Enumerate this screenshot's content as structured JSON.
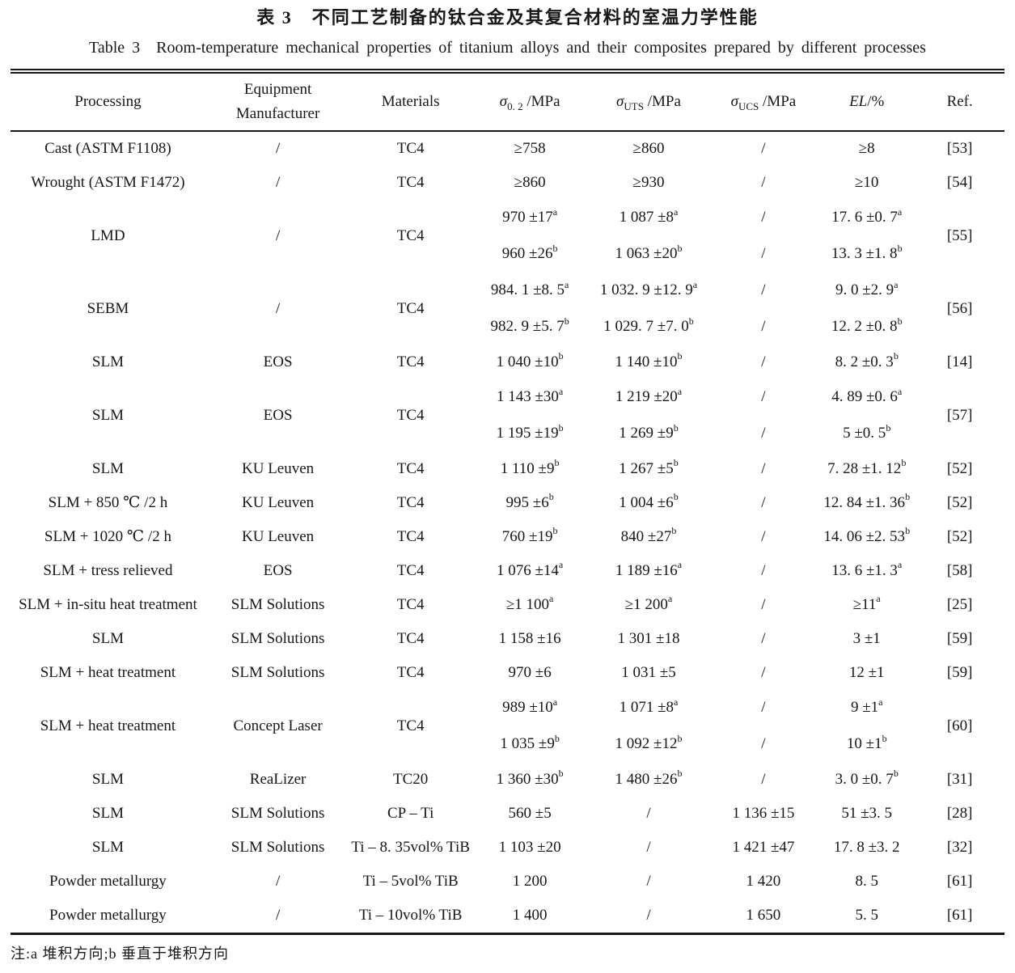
{
  "titles": {
    "zh": "表 3　不同工艺制备的钛合金及其复合材料的室温力学性能",
    "en": "Table 3　Room-temperature mechanical properties of titanium alloys and their composites prepared by different processes"
  },
  "table": {
    "header": {
      "processing": "Processing",
      "equipment_line1": "Equipment",
      "equipment_line2": "Manufacturer",
      "materials": "Materials",
      "sigma02": {
        "symbol": "σ",
        "sub": "0. 2",
        "unit": " /MPa"
      },
      "uts": {
        "symbol": "σ",
        "sub": "UTS",
        "unit": " /MPa"
      },
      "ucs": {
        "symbol": "σ",
        "sub": "UCS",
        "unit": " /MPa"
      },
      "el": {
        "symbol": "EL",
        "sub": "",
        "unit": "/%"
      },
      "ref": "Ref."
    },
    "rows": [
      {
        "processing": "Cast (ASTM F1108)",
        "equipment": "/",
        "materials": "TC4",
        "sigma02": [
          "≥758"
        ],
        "uts": [
          "≥860"
        ],
        "ucs": [
          "/"
        ],
        "el": [
          "≥8"
        ],
        "ref": "[53]"
      },
      {
        "processing": "Wrought (ASTM F1472)",
        "equipment": "/",
        "materials": "TC4",
        "sigma02": [
          "≥860"
        ],
        "uts": [
          "≥930"
        ],
        "ucs": [
          "/"
        ],
        "el": [
          "≥10"
        ],
        "ref": "[54]"
      },
      {
        "processing": "LMD",
        "equipment": "/",
        "materials": "TC4",
        "sigma02": [
          "970 ±17^a",
          "960 ±26^b"
        ],
        "uts": [
          "1 087 ±8^a",
          "1 063 ±20^b"
        ],
        "ucs": [
          "/",
          "/"
        ],
        "el": [
          "17. 6 ±0. 7^a",
          "13. 3 ±1. 8^b"
        ],
        "ref": "[55]"
      },
      {
        "processing": "SEBM",
        "equipment": "/",
        "materials": "TC4",
        "sigma02": [
          "984. 1 ±8. 5^a",
          "982. 9 ±5. 7^b"
        ],
        "uts": [
          "1 032. 9 ±12. 9^a",
          "1 029. 7 ±7. 0^b"
        ],
        "ucs": [
          "/",
          "/"
        ],
        "el": [
          "9. 0 ±2. 9^a",
          "12. 2 ±0. 8^b"
        ],
        "ref": "[56]"
      },
      {
        "processing": "SLM",
        "equipment": "EOS",
        "materials": "TC4",
        "sigma02": [
          "1 040 ±10^b"
        ],
        "uts": [
          "1 140 ±10^b"
        ],
        "ucs": [
          "/"
        ],
        "el": [
          "8. 2 ±0. 3^b"
        ],
        "ref": "[14]"
      },
      {
        "processing": "SLM",
        "equipment": "EOS",
        "materials": "TC4",
        "sigma02": [
          "1 143 ±30^a",
          "1 195 ±19^b"
        ],
        "uts": [
          "1 219 ±20^a",
          "1 269 ±9^b"
        ],
        "ucs": [
          "/",
          "/"
        ],
        "el": [
          "4. 89 ±0. 6^a",
          "5 ±0. 5^b"
        ],
        "ref": "[57]"
      },
      {
        "processing": "SLM",
        "equipment": "KU Leuven",
        "materials": "TC4",
        "sigma02": [
          "1 110 ±9^b"
        ],
        "uts": [
          "1 267 ±5^b"
        ],
        "ucs": [
          "/"
        ],
        "el": [
          "7. 28 ±1. 12^b"
        ],
        "ref": "[52]"
      },
      {
        "processing": "SLM + 850 ℃ /2 h",
        "equipment": "KU Leuven",
        "materials": "TC4",
        "sigma02": [
          "995 ±6^b"
        ],
        "uts": [
          "1 004 ±6^b"
        ],
        "ucs": [
          "/"
        ],
        "el": [
          "12. 84 ±1. 36^b"
        ],
        "ref": "[52]"
      },
      {
        "processing": "SLM + 1020 ℃ /2 h",
        "equipment": "KU Leuven",
        "materials": "TC4",
        "sigma02": [
          "760 ±19^b"
        ],
        "uts": [
          "840 ±27^b"
        ],
        "ucs": [
          "/"
        ],
        "el": [
          "14. 06 ±2. 53^b"
        ],
        "ref": "[52]"
      },
      {
        "processing": "SLM + tress relieved",
        "equipment": "EOS",
        "materials": "TC4",
        "sigma02": [
          "1 076 ±14^a"
        ],
        "uts": [
          "1 189 ±16^a"
        ],
        "ucs": [
          "/"
        ],
        "el": [
          "13. 6 ±1. 3^a"
        ],
        "ref": "[58]"
      },
      {
        "processing": "SLM + in-situ heat treatment",
        "equipment": "SLM Solutions",
        "materials": "TC4",
        "sigma02": [
          "≥1 100^a"
        ],
        "uts": [
          "≥1 200^a"
        ],
        "ucs": [
          "/"
        ],
        "el": [
          "≥11^a"
        ],
        "ref": "[25]"
      },
      {
        "processing": "SLM",
        "equipment": "SLM Solutions",
        "materials": "TC4",
        "sigma02": [
          "1 158 ±16"
        ],
        "uts": [
          "1 301 ±18"
        ],
        "ucs": [
          "/"
        ],
        "el": [
          "3 ±1"
        ],
        "ref": "[59]"
      },
      {
        "processing": "SLM +  heat treatment",
        "equipment": "SLM Solutions",
        "materials": "TC4",
        "sigma02": [
          "970 ±6"
        ],
        "uts": [
          "1 031 ±5"
        ],
        "ucs": [
          "/"
        ],
        "el": [
          "12 ±1"
        ],
        "ref": "[59]"
      },
      {
        "processing": "SLM + heat treatment",
        "equipment": "Concept Laser",
        "materials": "TC4",
        "sigma02": [
          "989 ±10^a",
          "1 035 ±9^b"
        ],
        "uts": [
          "1 071 ±8^a",
          "1 092 ±12^b"
        ],
        "ucs": [
          "/",
          "/"
        ],
        "el": [
          "9 ±1^a",
          "10 ±1^b"
        ],
        "ref": "[60]"
      },
      {
        "processing": "SLM",
        "equipment": "ReaLizer",
        "materials": "TC20",
        "sigma02": [
          "1 360 ±30^b"
        ],
        "uts": [
          "1 480 ±26^b"
        ],
        "ucs": [
          "/"
        ],
        "el": [
          "3. 0 ±0. 7^b"
        ],
        "ref": "[31]"
      },
      {
        "processing": "SLM",
        "equipment": "SLM Solutions",
        "materials": "CP – Ti",
        "sigma02": [
          "560 ±5"
        ],
        "uts": [
          "/"
        ],
        "ucs": [
          "1 136 ±15"
        ],
        "el": [
          "51 ±3. 5"
        ],
        "ref": "[28]"
      },
      {
        "processing": "SLM",
        "equipment": "SLM Solutions",
        "materials": "Ti – 8. 35vol% TiB",
        "sigma02": [
          "1 103 ±20"
        ],
        "uts": [
          "/"
        ],
        "ucs": [
          "1 421 ±47"
        ],
        "el": [
          "17. 8 ±3. 2"
        ],
        "ref": "[32]"
      },
      {
        "processing": "Powder metallurgy",
        "equipment": "/",
        "materials": "Ti – 5vol% TiB",
        "sigma02": [
          "1 200"
        ],
        "uts": [
          "/"
        ],
        "ucs": [
          "1 420"
        ],
        "el": [
          "8. 5"
        ],
        "ref": "[61]"
      },
      {
        "processing": "Powder metallurgy",
        "equipment": "/",
        "materials": "Ti – 10vol% TiB",
        "sigma02": [
          "1 400"
        ],
        "uts": [
          "/"
        ],
        "ucs": [
          "1 650"
        ],
        "el": [
          "5. 5"
        ],
        "ref": "[61]"
      }
    ]
  },
  "footnote": "注:a 堆积方向;b 垂直于堆积方向"
}
